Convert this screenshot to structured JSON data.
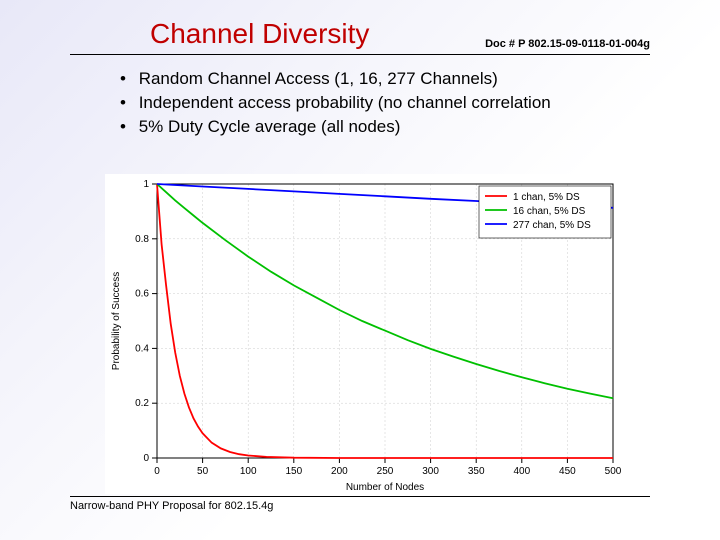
{
  "header": {
    "title": "Channel Diversity",
    "doc": "Doc # P 802.15-09-0118-01-004g"
  },
  "bullets": [
    "Random Channel Access (1, 16, 277 Channels)",
    "Independent access probability (no channel correlation",
    "5% Duty Cycle average (all nodes)"
  ],
  "footer": "Narrow-band PHY Proposal for 802.15.4g",
  "chart": {
    "type": "line",
    "xlabel": "Number of Nodes",
    "ylabel": "Probability of Success",
    "xlim": [
      0,
      500
    ],
    "ylim": [
      0,
      1
    ],
    "xticks": [
      0,
      50,
      100,
      150,
      200,
      250,
      300,
      350,
      400,
      450,
      500
    ],
    "yticks": [
      0,
      0.2,
      0.4,
      0.6,
      0.8,
      1
    ],
    "ytick_labels": [
      "0",
      "0.2",
      "0.4",
      "0.6",
      "0.8",
      "1"
    ],
    "background_color": "#ffffff",
    "grid_color": "#cccccc",
    "axis_color": "#000000",
    "tick_fontsize": 10,
    "label_fontsize": 10,
    "legend": {
      "position": "top-right",
      "fontsize": 10,
      "items": [
        {
          "label": "1 chan, 5% DS",
          "color": "#ff0000"
        },
        {
          "label": "16 chan, 5% DS",
          "color": "#00c000"
        },
        {
          "label": "277 chan, 5% DS",
          "color": "#0000ff"
        }
      ]
    },
    "series": [
      {
        "name": "1 chan, 5% DS",
        "color": "#ff0000",
        "line_width": 1.8,
        "x": [
          0,
          5,
          10,
          15,
          20,
          25,
          30,
          35,
          40,
          45,
          50,
          60,
          70,
          80,
          90,
          100,
          120,
          150,
          200,
          250,
          300,
          350,
          400,
          450,
          500
        ],
        "y": [
          1,
          0.78,
          0.63,
          0.49,
          0.385,
          0.3,
          0.235,
          0.185,
          0.145,
          0.115,
          0.09,
          0.056,
          0.035,
          0.022,
          0.014,
          0.009,
          0.004,
          0.001,
          0,
          0,
          0,
          0,
          0,
          0,
          0
        ]
      },
      {
        "name": "16 chan, 5% DS",
        "color": "#00c000",
        "line_width": 1.8,
        "x": [
          0,
          10,
          20,
          30,
          40,
          50,
          75,
          100,
          125,
          150,
          175,
          200,
          225,
          250,
          275,
          300,
          325,
          350,
          375,
          400,
          425,
          450,
          475,
          500
        ],
        "y": [
          1,
          0.97,
          0.94,
          0.912,
          0.885,
          0.858,
          0.795,
          0.735,
          0.68,
          0.63,
          0.585,
          0.54,
          0.5,
          0.465,
          0.43,
          0.398,
          0.37,
          0.343,
          0.318,
          0.295,
          0.273,
          0.253,
          0.235,
          0.218
        ]
      },
      {
        "name": "277 chan, 5% DS",
        "color": "#0000ff",
        "line_width": 1.8,
        "x": [
          0,
          50,
          100,
          150,
          200,
          250,
          300,
          350,
          400,
          450,
          500
        ],
        "y": [
          1,
          0.991,
          0.982,
          0.973,
          0.964,
          0.955,
          0.946,
          0.938,
          0.929,
          0.921,
          0.913
        ]
      }
    ]
  }
}
